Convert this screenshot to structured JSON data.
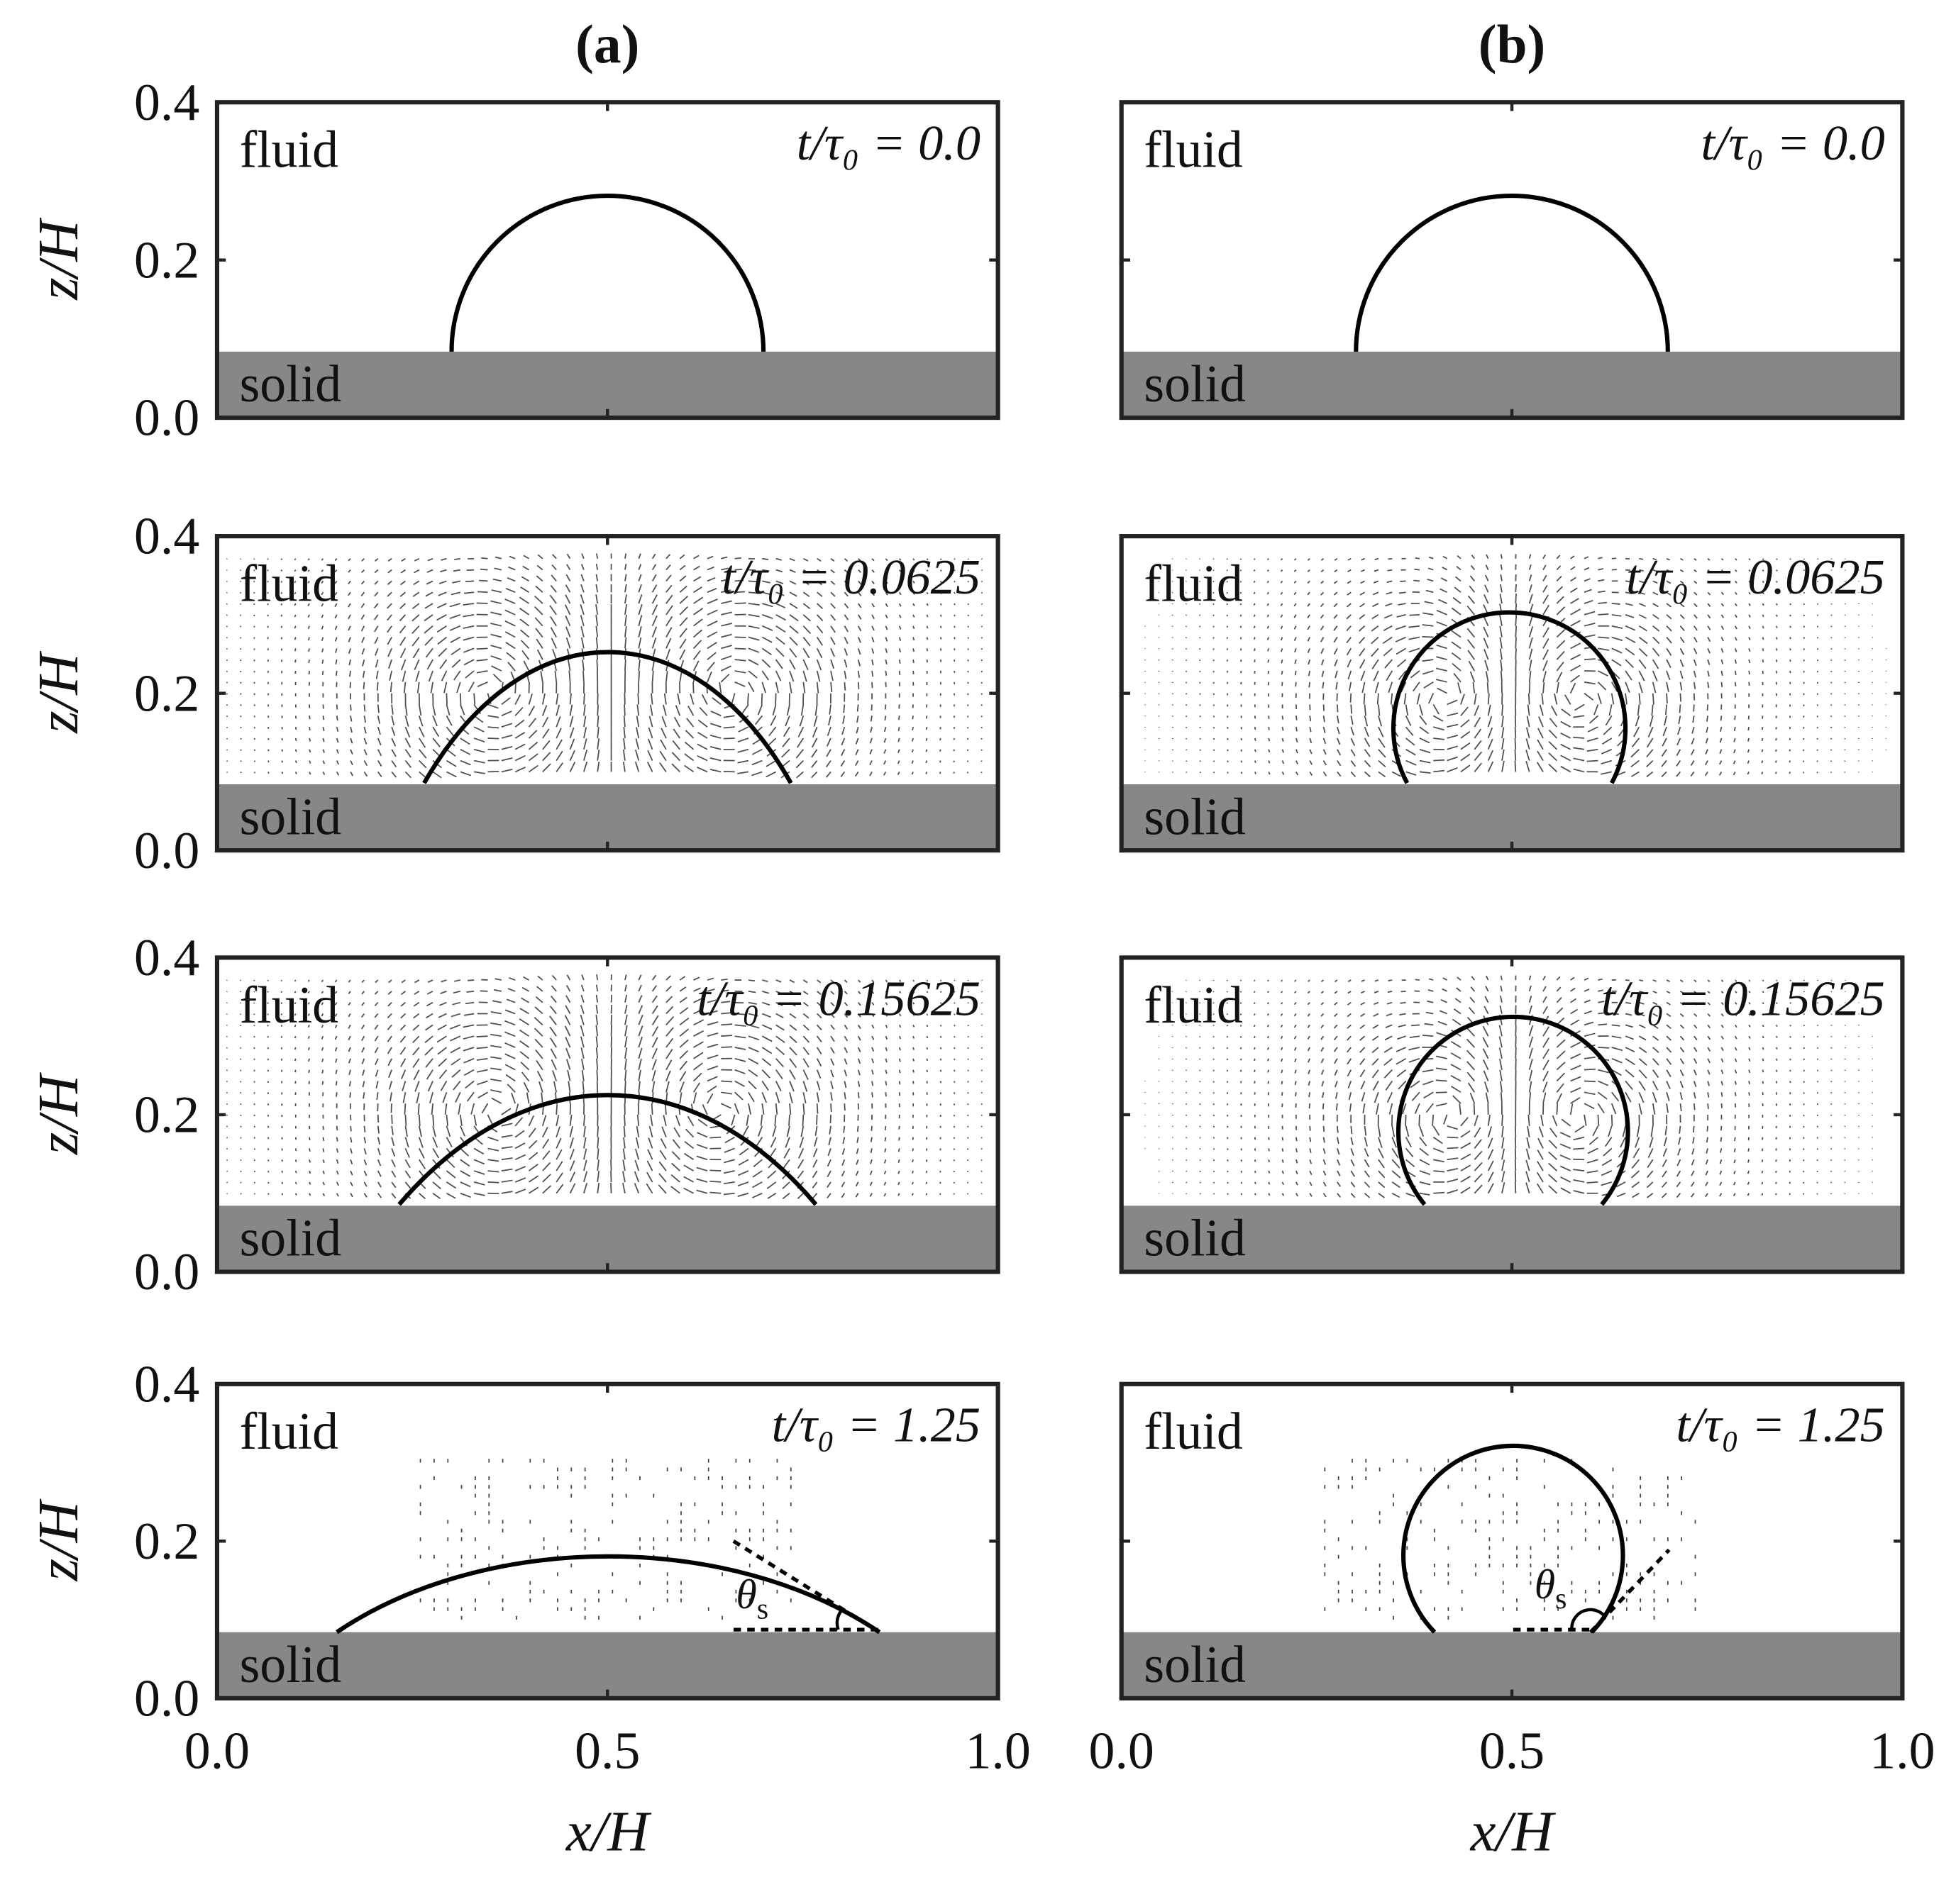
{
  "columns": [
    "(a)",
    "(b)"
  ],
  "times": [
    "t/τ₀ = 0.0",
    "t/τ₀ = 0.0625",
    "t/τ₀ = 0.15625",
    "t/τ₀ = 1.25"
  ],
  "axes": {
    "ylabel": "z/H",
    "xlabel": "x/H",
    "yticks": [
      "0.0",
      "0.2",
      "0.4"
    ],
    "xticks": [
      "0.0",
      "0.5",
      "1.0"
    ]
  },
  "labels": {
    "fluid": "fluid",
    "solid": "solid"
  },
  "angle": {
    "symbol": "θ",
    "sub": "s"
  }
}
